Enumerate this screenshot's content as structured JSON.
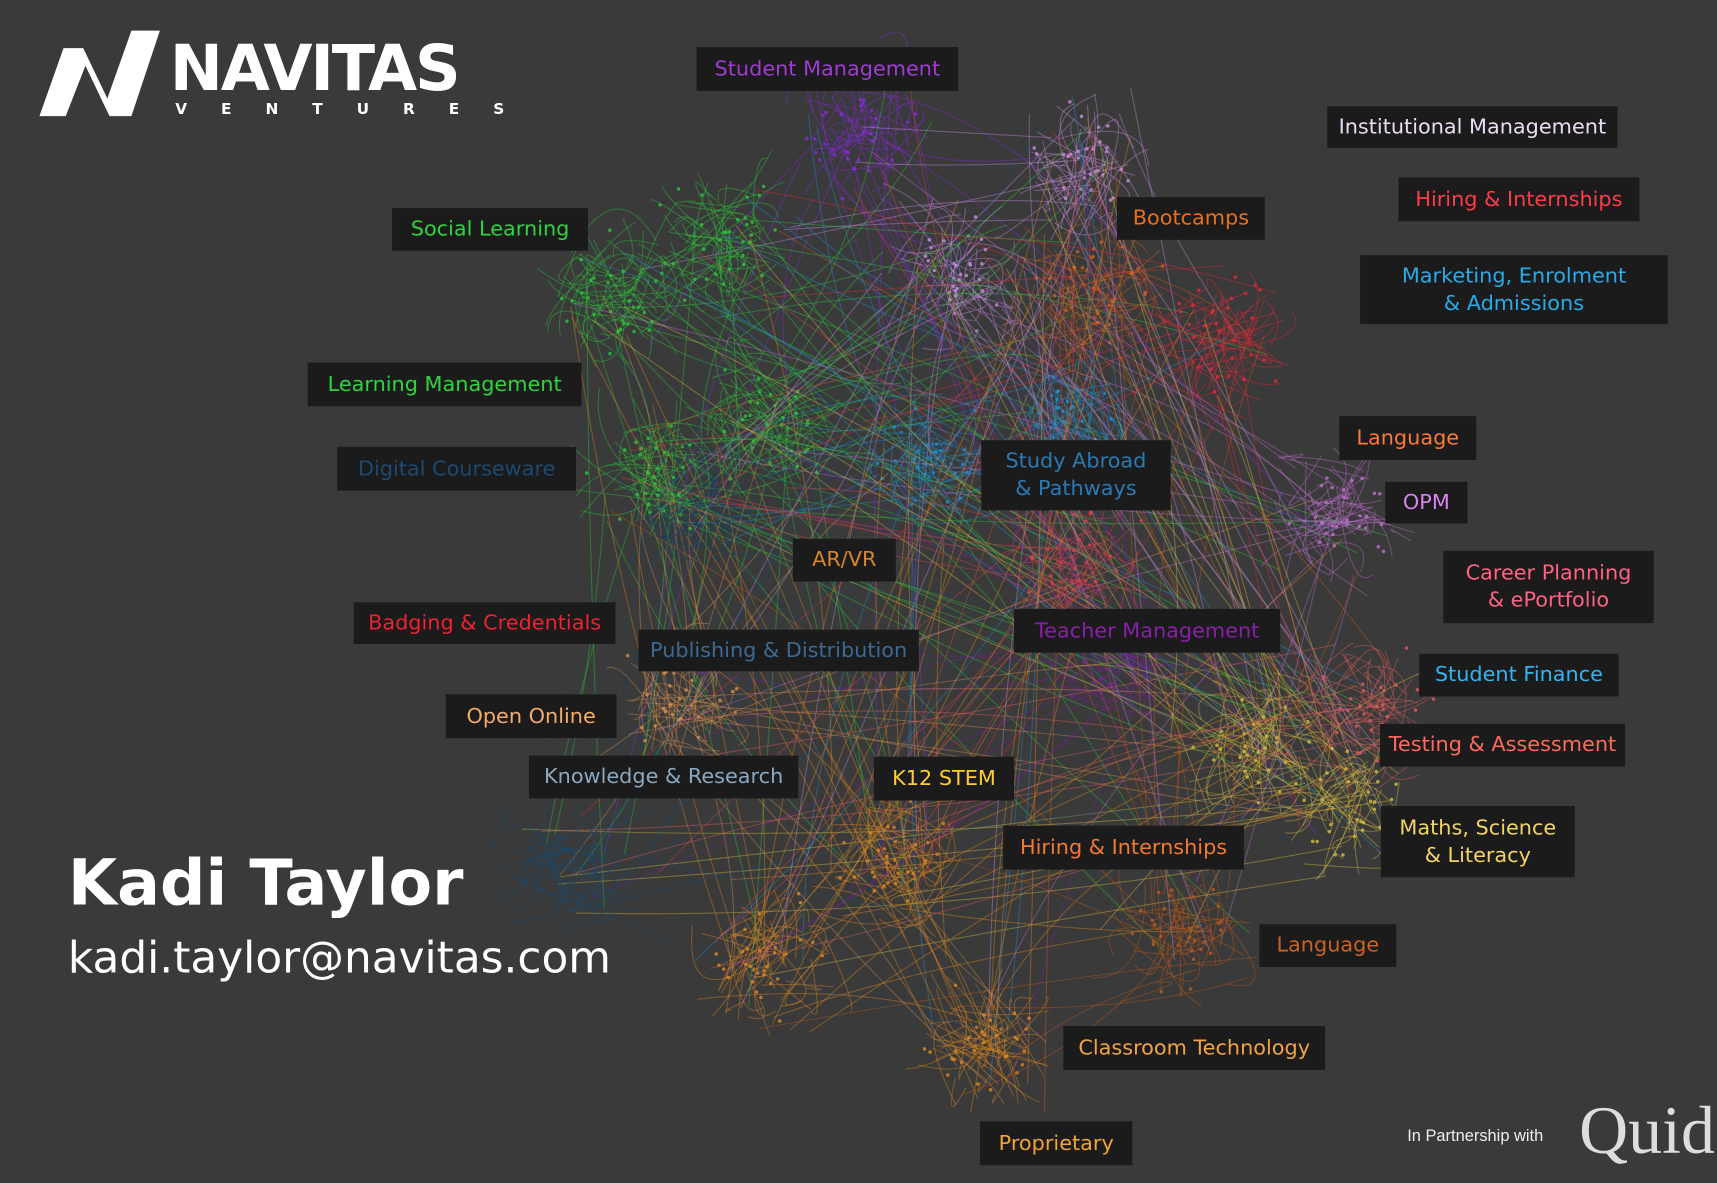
{
  "logo": {
    "name": "NAVITAS",
    "tagline": "VENTURES"
  },
  "contact": {
    "name": "Kadi Taylor",
    "email": "kadi.taylor@navitas.com"
  },
  "partner": {
    "text": "In Partnership with",
    "logo": "Quid"
  },
  "clusters": [
    {
      "lines": [
        "Student Management"
      ],
      "color": "#a23ad6"
    },
    {
      "lines": [
        "Institutional Management"
      ],
      "color": "#eadcf2"
    },
    {
      "lines": [
        "Hiring & Internships"
      ],
      "color": "#ff3b4a"
    },
    {
      "lines": [
        "Social Learning"
      ],
      "color": "#2ed43c"
    },
    {
      "lines": [
        "Bootcamps"
      ],
      "color": "#e8701a"
    },
    {
      "lines": [
        "Marketing, Enrolment",
        "& Admissions"
      ],
      "color": "#2aaae8"
    },
    {
      "lines": [
        "Learning Management"
      ],
      "color": "#2ed43c"
    },
    {
      "lines": [
        "Digital Courseware"
      ],
      "color": "#1c4a70"
    },
    {
      "lines": [
        "Language"
      ],
      "color": "#ff7a30"
    },
    {
      "lines": [
        "Study Abroad",
        "& Pathways"
      ],
      "color": "#2a7ab4"
    },
    {
      "lines": [
        "OPM"
      ],
      "color": "#d884ee"
    },
    {
      "lines": [
        "AR/VR"
      ],
      "color": "#d8862a"
    },
    {
      "lines": [
        "Career Planning",
        "& ePortfolio"
      ],
      "color": "#ff6282"
    },
    {
      "lines": [
        "Badging & Credentials"
      ],
      "color": "#ee2230"
    },
    {
      "lines": [
        "Teacher Management"
      ],
      "color": "#8a1fa8"
    },
    {
      "lines": [
        "Publishing & Distribution"
      ],
      "color": "#3c6a92"
    },
    {
      "lines": [
        "Student Finance"
      ],
      "color": "#30b4f4"
    },
    {
      "lines": [
        "Open Online"
      ],
      "color": "#f4ac6c"
    },
    {
      "lines": [
        "Testing & Assessment"
      ],
      "color": "#ff6a5a"
    },
    {
      "lines": [
        "Knowledge & Research"
      ],
      "color": "#8aa8c2"
    },
    {
      "lines": [
        "K12 STEM"
      ],
      "color": "#ffcc33"
    },
    {
      "lines": [
        "Maths, Science",
        "& Literacy"
      ],
      "color": "#f2d464"
    },
    {
      "lines": [
        "Hiring & Internships"
      ],
      "color": "#f27a30"
    },
    {
      "lines": [
        "Language"
      ],
      "color": "#cc6222"
    },
    {
      "lines": [
        "Classroom Technology"
      ],
      "color": "#f2a444"
    },
    {
      "lines": [
        "Proprietary"
      ],
      "color": "#f2a434"
    }
  ]
}
